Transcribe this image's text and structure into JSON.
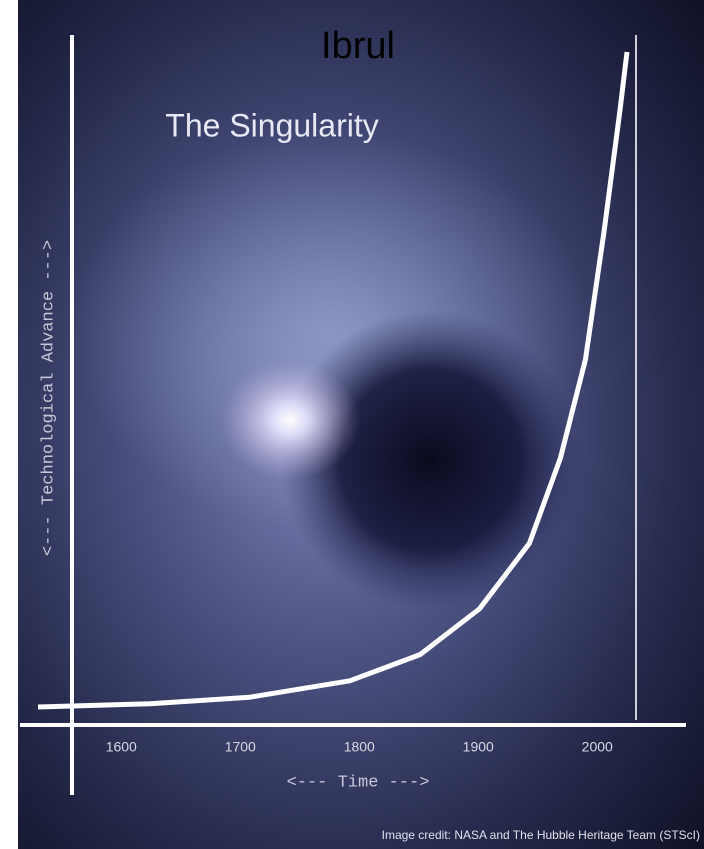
{
  "chart_data": {
    "type": "line",
    "title": "The Singularity",
    "x_label": "<--- Time --->",
    "y_label": "<--- Technological Advance --->",
    "annotations": [
      "Ibrul",
      "Image credit: NASA and The Hubble Heritage Team (STScI)"
    ],
    "x": [
      1530,
      1624,
      1708,
      1792,
      1851,
      1901,
      1943,
      1969,
      1990,
      2006,
      2019,
      2025
    ],
    "values": [
      0,
      0.5,
      1.5,
      4,
      8,
      15,
      25,
      38,
      53,
      73,
      91,
      100
    ],
    "color": "#ffffff",
    "xlim": [
      1530,
      2025
    ],
    "ylim": [
      0,
      100
    ],
    "xticks": [
      1600,
      1700,
      1800,
      1900,
      2000
    ]
  }
}
